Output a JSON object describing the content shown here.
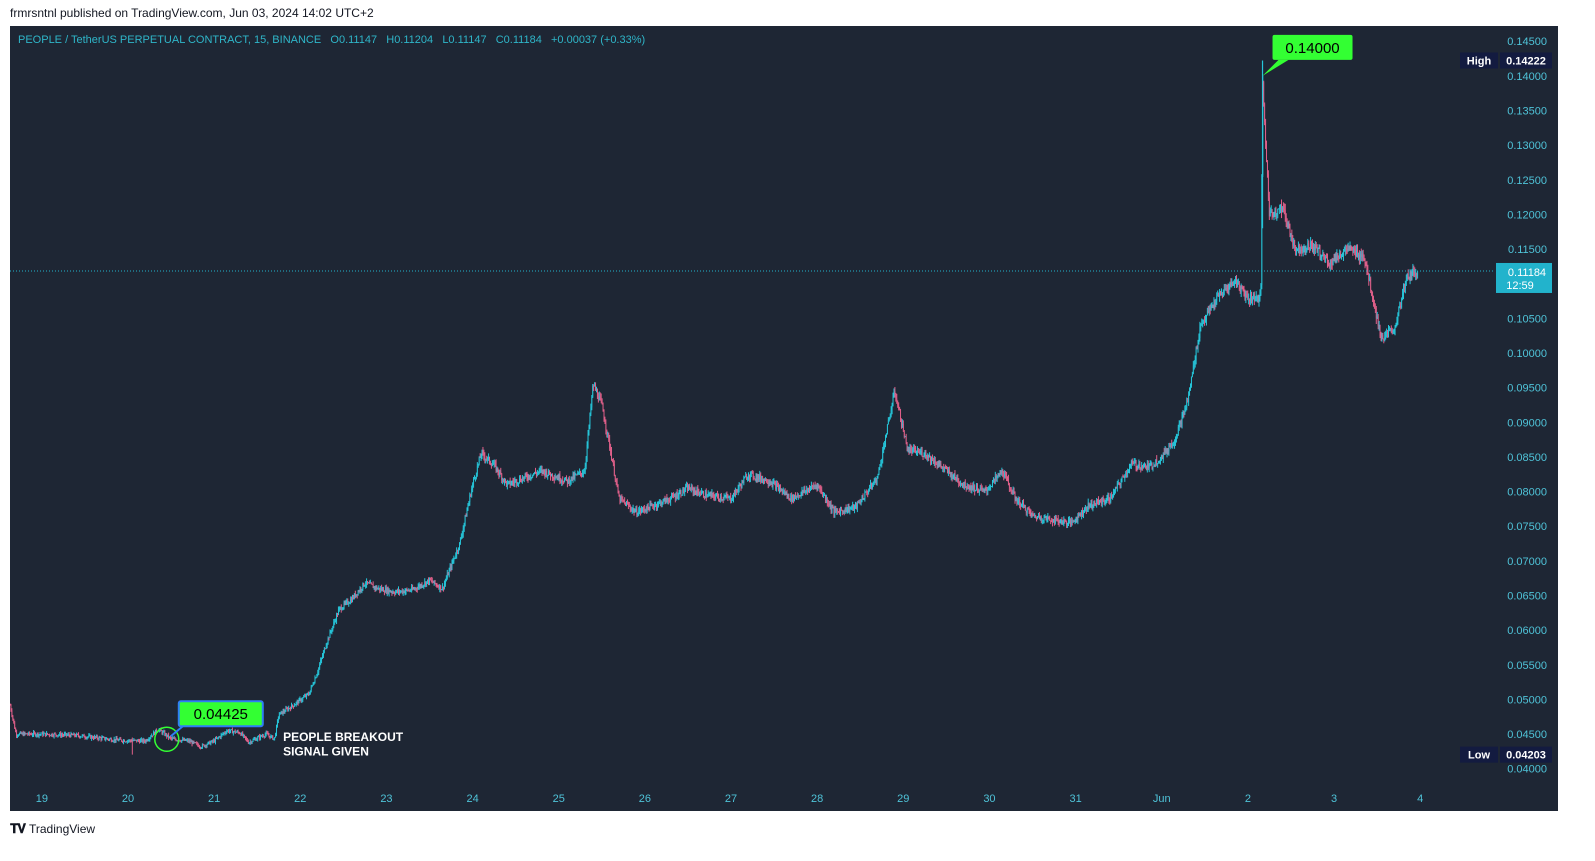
{
  "header": {
    "published_by": "frmrsntnl published on TradingView.com, Jun 03, 2024 14:02 UTC+2"
  },
  "legend": {
    "symbol": "PEOPLE / TetherUS PERPETUAL CONTRACT, 15, BINANCE",
    "open": "O0.11147",
    "high": "H0.11204",
    "low": "L0.11147",
    "close": "C0.11184",
    "change": "+0.00037 (+0.33%)"
  },
  "footer": {
    "brand": "TradingView",
    "logo_icon": "tradingview-logo-icon"
  },
  "colors": {
    "background": "#1e2634",
    "up": "#26c6da",
    "down": "#e0608a",
    "axis_text": "#4fc3d8",
    "callout": "#33ff33",
    "last_price_bg": "#22b3cc"
  },
  "chart_data": {
    "type": "candlestick",
    "title": "PEOPLE / TetherUS PERPETUAL CONTRACT, 15, BINANCE",
    "ylim": [
      0.0375,
      0.1472
    ],
    "y_ticks": [
      "0.14500",
      "0.14000",
      "0.13500",
      "0.13000",
      "0.12500",
      "0.12000",
      "0.11500",
      "0.10500",
      "0.10000",
      "0.09500",
      "0.09000",
      "0.08500",
      "0.08000",
      "0.07500",
      "0.07000",
      "0.06500",
      "0.06000",
      "0.05500",
      "0.05000",
      "0.04500",
      "0.04000"
    ],
    "x_ticks": [
      {
        "label": "19",
        "t": 0
      },
      {
        "label": "20",
        "t": 1
      },
      {
        "label": "21",
        "t": 2
      },
      {
        "label": "22",
        "t": 3
      },
      {
        "label": "23",
        "t": 4
      },
      {
        "label": "24",
        "t": 5
      },
      {
        "label": "25",
        "t": 6
      },
      {
        "label": "26",
        "t": 7
      },
      {
        "label": "27",
        "t": 8
      },
      {
        "label": "28",
        "t": 9
      },
      {
        "label": "29",
        "t": 10
      },
      {
        "label": "30",
        "t": 11
      },
      {
        "label": "31",
        "t": 12
      },
      {
        "label": "Jun",
        "t": 13
      },
      {
        "label": "2",
        "t": 14
      },
      {
        "label": "3",
        "t": 15
      },
      {
        "label": "4",
        "t": 16
      }
    ],
    "x_range": [
      -0.37,
      17.6
    ],
    "price_path": [
      [
        -0.37,
        0.0492
      ],
      [
        -0.3,
        0.045
      ],
      [
        0.0,
        0.045
      ],
      [
        0.4,
        0.0448
      ],
      [
        0.9,
        0.0441
      ],
      [
        1.2,
        0.044
      ],
      [
        1.35,
        0.0457
      ],
      [
        1.5,
        0.0443
      ],
      [
        1.7,
        0.044
      ],
      [
        1.85,
        0.0432
      ],
      [
        2.0,
        0.044
      ],
      [
        2.15,
        0.0455
      ],
      [
        2.3,
        0.0452
      ],
      [
        2.4,
        0.0438
      ],
      [
        2.6,
        0.045
      ],
      [
        2.7,
        0.0443
      ],
      [
        2.75,
        0.0478
      ],
      [
        2.9,
        0.049
      ],
      [
        3.1,
        0.0508
      ],
      [
        3.2,
        0.054
      ],
      [
        3.3,
        0.058
      ],
      [
        3.45,
        0.063
      ],
      [
        3.6,
        0.0645
      ],
      [
        3.75,
        0.0668
      ],
      [
        3.9,
        0.066
      ],
      [
        4.1,
        0.0655
      ],
      [
        4.3,
        0.0658
      ],
      [
        4.5,
        0.0672
      ],
      [
        4.65,
        0.066
      ],
      [
        4.85,
        0.0725
      ],
      [
        5.0,
        0.081
      ],
      [
        5.1,
        0.0855
      ],
      [
        5.25,
        0.0838
      ],
      [
        5.4,
        0.081
      ],
      [
        5.6,
        0.082
      ],
      [
        5.8,
        0.083
      ],
      [
        6.1,
        0.0815
      ],
      [
        6.3,
        0.083
      ],
      [
        6.4,
        0.0955
      ],
      [
        6.5,
        0.0925
      ],
      [
        6.6,
        0.086
      ],
      [
        6.7,
        0.079
      ],
      [
        6.9,
        0.077
      ],
      [
        7.1,
        0.078
      ],
      [
        7.3,
        0.079
      ],
      [
        7.5,
        0.0805
      ],
      [
        7.7,
        0.0795
      ],
      [
        8.0,
        0.079
      ],
      [
        8.2,
        0.0825
      ],
      [
        8.45,
        0.0815
      ],
      [
        8.7,
        0.079
      ],
      [
        9.0,
        0.081
      ],
      [
        9.2,
        0.077
      ],
      [
        9.45,
        0.0778
      ],
      [
        9.7,
        0.082
      ],
      [
        9.9,
        0.0945
      ],
      [
        10.05,
        0.086
      ],
      [
        10.25,
        0.0855
      ],
      [
        10.5,
        0.083
      ],
      [
        10.7,
        0.081
      ],
      [
        10.95,
        0.08
      ],
      [
        11.15,
        0.083
      ],
      [
        11.3,
        0.079
      ],
      [
        11.5,
        0.0765
      ],
      [
        11.7,
        0.076
      ],
      [
        11.95,
        0.0755
      ],
      [
        12.15,
        0.078
      ],
      [
        12.4,
        0.079
      ],
      [
        12.65,
        0.084
      ],
      [
        12.85,
        0.0835
      ],
      [
        13.0,
        0.085
      ],
      [
        13.15,
        0.0875
      ],
      [
        13.3,
        0.093
      ],
      [
        13.45,
        0.104
      ],
      [
        13.65,
        0.108
      ],
      [
        13.85,
        0.1105
      ],
      [
        14.0,
        0.108
      ],
      [
        14.15,
        0.108
      ],
      [
        14.17,
        0.139
      ],
      [
        14.25,
        0.12
      ],
      [
        14.4,
        0.121
      ],
      [
        14.55,
        0.115
      ],
      [
        14.75,
        0.1155
      ],
      [
        14.95,
        0.113
      ],
      [
        15.15,
        0.115
      ],
      [
        15.35,
        0.114
      ],
      [
        15.55,
        0.102
      ],
      [
        15.7,
        0.1035
      ],
      [
        15.85,
        0.111
      ],
      [
        15.97,
        0.1118
      ]
    ],
    "annotations": [
      {
        "text": "0.14000",
        "t": 14.17,
        "price": 0.14,
        "style": "callout"
      },
      {
        "text": "0.04425",
        "t": 1.45,
        "price": 0.04425,
        "style": "callout"
      },
      {
        "text": "PEOPLE BREAKOUT",
        "t": 2.8,
        "price": 0.044
      },
      {
        "text": "SIGNAL GIVEN",
        "t": 2.8,
        "price": 0.0419
      }
    ],
    "last_price": {
      "value": "0.11184",
      "countdown": "12:59",
      "price": 0.11184
    },
    "high": {
      "label": "High",
      "value": "0.14222",
      "price": 0.14222
    },
    "low": {
      "label": "Low",
      "value": "0.04203",
      "price": 0.04203
    }
  }
}
